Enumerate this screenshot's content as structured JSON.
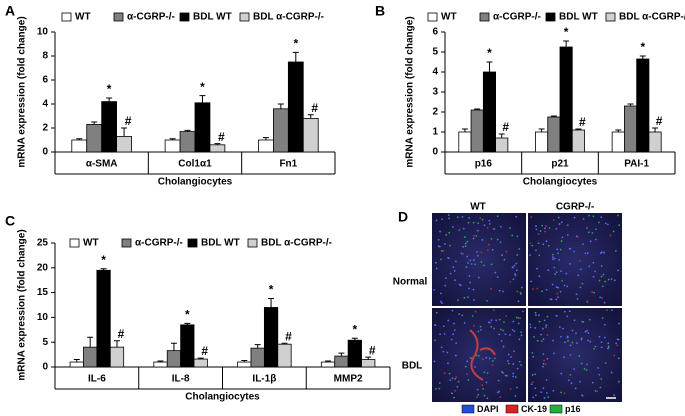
{
  "chart_data": [
    {
      "type": "bar",
      "panel": "A",
      "ylabel": "mRNA expression (fold change)",
      "xlabel": "Cholangiocytes",
      "categories": [
        "α-SMA",
        "Col1α1",
        "Fn1"
      ],
      "series": [
        {
          "name": "WT",
          "color": "#ffffff",
          "values": [
            1.0,
            1.0,
            1.0
          ],
          "errors": [
            0.1,
            0.1,
            0.2
          ]
        },
        {
          "name": "α-CGRP-/-",
          "color": "#808080",
          "values": [
            2.3,
            1.7,
            3.6
          ],
          "errors": [
            0.2,
            0.1,
            0.4
          ]
        },
        {
          "name": "BDL WT",
          "color": "#000000",
          "values": [
            4.2,
            4.1,
            7.5
          ],
          "errors": [
            0.3,
            0.6,
            0.8
          ],
          "annotations": [
            "*",
            "*",
            "*"
          ]
        },
        {
          "name": "BDL α-CGRP-/-",
          "color": "#d0d0d0",
          "values": [
            1.3,
            0.6,
            2.8
          ],
          "errors": [
            0.7,
            0.1,
            0.3
          ],
          "annotations": [
            "#",
            "#",
            "#"
          ]
        }
      ],
      "ylim": [
        0,
        10
      ],
      "yticks": [
        0,
        2,
        4,
        6,
        8,
        10
      ]
    },
    {
      "type": "bar",
      "panel": "B",
      "ylabel": "mRNA expression (fold change)",
      "xlabel": "Cholangiocytes",
      "categories": [
        "p16",
        "p21",
        "PAI-1"
      ],
      "series": [
        {
          "name": "WT",
          "color": "#ffffff",
          "values": [
            1.0,
            1.0,
            1.0
          ],
          "errors": [
            0.15,
            0.15,
            0.1
          ]
        },
        {
          "name": "α-CGRP-/-",
          "color": "#808080",
          "values": [
            2.1,
            1.75,
            2.3
          ],
          "errors": [
            0.05,
            0.05,
            0.1
          ]
        },
        {
          "name": "BDL WT",
          "color": "#000000",
          "values": [
            4.0,
            5.25,
            4.65
          ],
          "errors": [
            0.5,
            0.3,
            0.15
          ],
          "annotations": [
            "*",
            "*",
            "*"
          ]
        },
        {
          "name": "BDL α-CGRP-/-",
          "color": "#d0d0d0",
          "values": [
            0.7,
            1.1,
            1.0
          ],
          "errors": [
            0.2,
            0.05,
            0.2
          ],
          "annotations": [
            "#",
            "#",
            "#"
          ]
        }
      ],
      "ylim": [
        0,
        6
      ],
      "yticks": [
        0,
        1,
        2,
        3,
        4,
        5,
        6
      ]
    },
    {
      "type": "bar",
      "panel": "C",
      "ylabel": "mRNA expression (fold change)",
      "xlabel": "Cholangiocytes",
      "categories": [
        "IL-6",
        "IL-8",
        "IL-1β",
        "MMP2"
      ],
      "series": [
        {
          "name": "WT",
          "color": "#ffffff",
          "values": [
            1.0,
            1.0,
            1.0,
            1.0
          ],
          "errors": [
            0.5,
            0.2,
            0.3,
            0.2
          ]
        },
        {
          "name": "α-CGRP-/-",
          "color": "#808080",
          "values": [
            4.0,
            3.3,
            3.8,
            2.2
          ],
          "errors": [
            2.0,
            1.5,
            0.7,
            0.6
          ]
        },
        {
          "name": "BDL WT",
          "color": "#000000",
          "values": [
            19.5,
            8.5,
            12.0,
            5.4
          ],
          "errors": [
            0.3,
            0.3,
            1.8,
            0.4
          ],
          "annotations": [
            "*",
            "*",
            "*",
            "*"
          ]
        },
        {
          "name": "BDL α-CGRP-/-",
          "color": "#d0d0d0",
          "values": [
            4.0,
            1.6,
            4.6,
            1.5
          ],
          "errors": [
            1.3,
            0.2,
            0.2,
            0.5
          ],
          "annotations": [
            "#",
            "#",
            "#",
            "#"
          ]
        }
      ],
      "ylim": [
        0,
        25
      ],
      "yticks": [
        0,
        5,
        10,
        15,
        20,
        25
      ]
    }
  ],
  "image_panel": {
    "panel": "D",
    "columns": [
      "WT",
      "CGRP-/-"
    ],
    "rows": [
      "Normal",
      "BDL"
    ],
    "stains": [
      {
        "name": "DAPI",
        "color": "#1f4fd8"
      },
      {
        "name": "CK-19",
        "color": "#e02020"
      },
      {
        "name": "p16",
        "color": "#20b040"
      }
    ]
  }
}
